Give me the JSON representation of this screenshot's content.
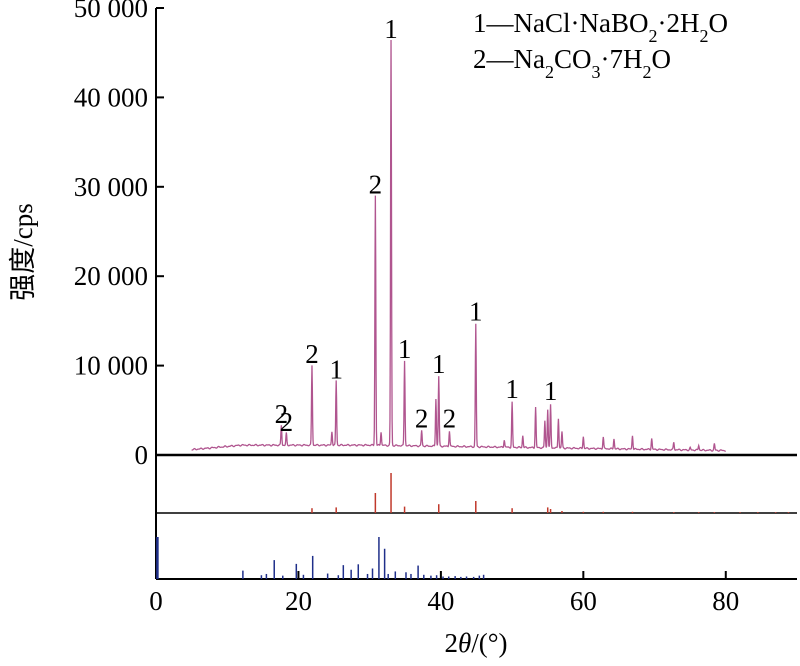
{
  "chart_data": {
    "type": "line",
    "title": "",
    "xlabel_prefix": "2",
    "xlabel_symbol": "θ",
    "xlabel_suffix": "/(°)",
    "ylabel": "强度/cps",
    "xlim": [
      0,
      90
    ],
    "ylim": [
      0,
      50000
    ],
    "x_ticks": [
      0,
      20,
      40,
      60,
      80
    ],
    "x_tick_labels": [
      "0",
      "20",
      "40",
      "60",
      "80"
    ],
    "y_ticks": [
      0,
      10000,
      20000,
      30000,
      40000,
      50000
    ],
    "y_tick_labels": [
      "0",
      "10 000",
      "20 000",
      "30 000",
      "40 000",
      "50 000"
    ],
    "grid": false,
    "legend_position": "top-right",
    "legend": [
      {
        "index": "1",
        "dash": "—",
        "parts": [
          [
            "NaCl·NaBO",
            ""
          ],
          [
            "2",
            "sub"
          ],
          [
            "·2H",
            ""
          ],
          [
            "2",
            "sub"
          ],
          [
            "O",
            ""
          ]
        ]
      },
      {
        "index": "2",
        "dash": "—",
        "parts": [
          [
            "Na",
            ""
          ],
          [
            "2",
            "sub"
          ],
          [
            "CO",
            ""
          ],
          [
            "3",
            "sub"
          ],
          [
            "·7H",
            ""
          ],
          [
            "2",
            "sub"
          ],
          [
            "O",
            ""
          ]
        ]
      }
    ],
    "series": [
      {
        "color": "#b0558f",
        "range": [
          5,
          80
        ],
        "baseline_start": 600,
        "baseline_peak": 1100,
        "baseline_end": 500,
        "peaks": [
          {
            "x": 17.6,
            "y": 2900,
            "label": "2"
          },
          {
            "x": 18.3,
            "y": 2000,
            "label": "2"
          },
          {
            "x": 21.9,
            "y": 9600,
            "label": "2"
          },
          {
            "x": 24.7,
            "y": 2200,
            "label": ""
          },
          {
            "x": 25.3,
            "y": 7900,
            "label": "1"
          },
          {
            "x": 30.8,
            "y": 28600,
            "label": "2"
          },
          {
            "x": 31.6,
            "y": 2200,
            "label": ""
          },
          {
            "x": 33.0,
            "y": 46000,
            "label": "1"
          },
          {
            "x": 34.9,
            "y": 10200,
            "label": "1"
          },
          {
            "x": 37.3,
            "y": 2400,
            "label": "2"
          },
          {
            "x": 39.3,
            "y": 6000,
            "label": ""
          },
          {
            "x": 39.7,
            "y": 8500,
            "label": "1"
          },
          {
            "x": 41.2,
            "y": 2400,
            "label": "2"
          },
          {
            "x": 44.9,
            "y": 14400,
            "label": "1"
          },
          {
            "x": 48.9,
            "y": 1500,
            "label": ""
          },
          {
            "x": 50.0,
            "y": 5700,
            "label": "1"
          },
          {
            "x": 51.5,
            "y": 2000,
            "label": ""
          },
          {
            "x": 53.3,
            "y": 5200,
            "label": ""
          },
          {
            "x": 54.6,
            "y": 3700,
            "label": ""
          },
          {
            "x": 55.0,
            "y": 5000,
            "label": ""
          },
          {
            "x": 55.4,
            "y": 5500,
            "label": "1"
          },
          {
            "x": 56.5,
            "y": 4000,
            "label": ""
          },
          {
            "x": 57.0,
            "y": 2500,
            "label": ""
          },
          {
            "x": 60.0,
            "y": 2000,
            "label": ""
          },
          {
            "x": 62.8,
            "y": 2000,
            "label": ""
          },
          {
            "x": 64.3,
            "y": 1800,
            "label": ""
          },
          {
            "x": 66.9,
            "y": 2200,
            "label": ""
          },
          {
            "x": 69.6,
            "y": 1900,
            "label": ""
          },
          {
            "x": 72.7,
            "y": 1500,
            "label": ""
          },
          {
            "x": 75.0,
            "y": 900,
            "label": ""
          },
          {
            "x": 76.2,
            "y": 1200,
            "label": ""
          },
          {
            "x": 78.4,
            "y": 1400,
            "label": ""
          }
        ]
      }
    ],
    "reference_patterns": [
      {
        "color": "#c0392b",
        "intensity_max": 100,
        "sticks": [
          [
            21.9,
            12
          ],
          [
            25.3,
            14
          ],
          [
            30.8,
            50
          ],
          [
            33.0,
            100
          ],
          [
            34.9,
            16
          ],
          [
            39.7,
            22
          ],
          [
            44.9,
            30
          ],
          [
            50.0,
            12
          ],
          [
            55.0,
            14
          ],
          [
            55.4,
            10
          ],
          [
            57.0,
            5
          ],
          [
            60.0,
            3
          ],
          [
            62.8,
            3
          ],
          [
            66.9,
            3
          ],
          [
            72.7,
            2
          ],
          [
            76.2,
            2
          ],
          [
            78.4,
            2
          ],
          [
            82.0,
            2
          ],
          [
            84.5,
            2
          ],
          [
            87.0,
            2
          ],
          [
            88.8,
            2
          ]
        ]
      },
      {
        "color": "#1f2f8a",
        "intensity_max": 100,
        "sticks": [
          [
            0.2,
            100
          ],
          [
            12.2,
            20
          ],
          [
            14.8,
            9
          ],
          [
            15.5,
            12
          ],
          [
            16.6,
            45
          ],
          [
            17.8,
            8
          ],
          [
            19.7,
            36
          ],
          [
            20.7,
            10
          ],
          [
            22.0,
            55
          ],
          [
            24.1,
            13
          ],
          [
            25.6,
            9
          ],
          [
            26.3,
            33
          ],
          [
            27.4,
            22
          ],
          [
            28.4,
            35
          ],
          [
            29.7,
            12
          ],
          [
            30.4,
            25
          ],
          [
            31.3,
            100
          ],
          [
            32.1,
            72
          ],
          [
            32.6,
            12
          ],
          [
            33.6,
            18
          ],
          [
            35.1,
            16
          ],
          [
            35.8,
            12
          ],
          [
            36.8,
            32
          ],
          [
            37.6,
            10
          ],
          [
            38.6,
            8
          ],
          [
            39.4,
            9
          ],
          [
            40.3,
            6
          ],
          [
            41.1,
            6
          ],
          [
            42.0,
            7
          ],
          [
            42.8,
            5
          ],
          [
            43.6,
            6
          ],
          [
            44.6,
            5
          ],
          [
            45.4,
            8
          ],
          [
            46.0,
            10
          ]
        ]
      }
    ]
  }
}
